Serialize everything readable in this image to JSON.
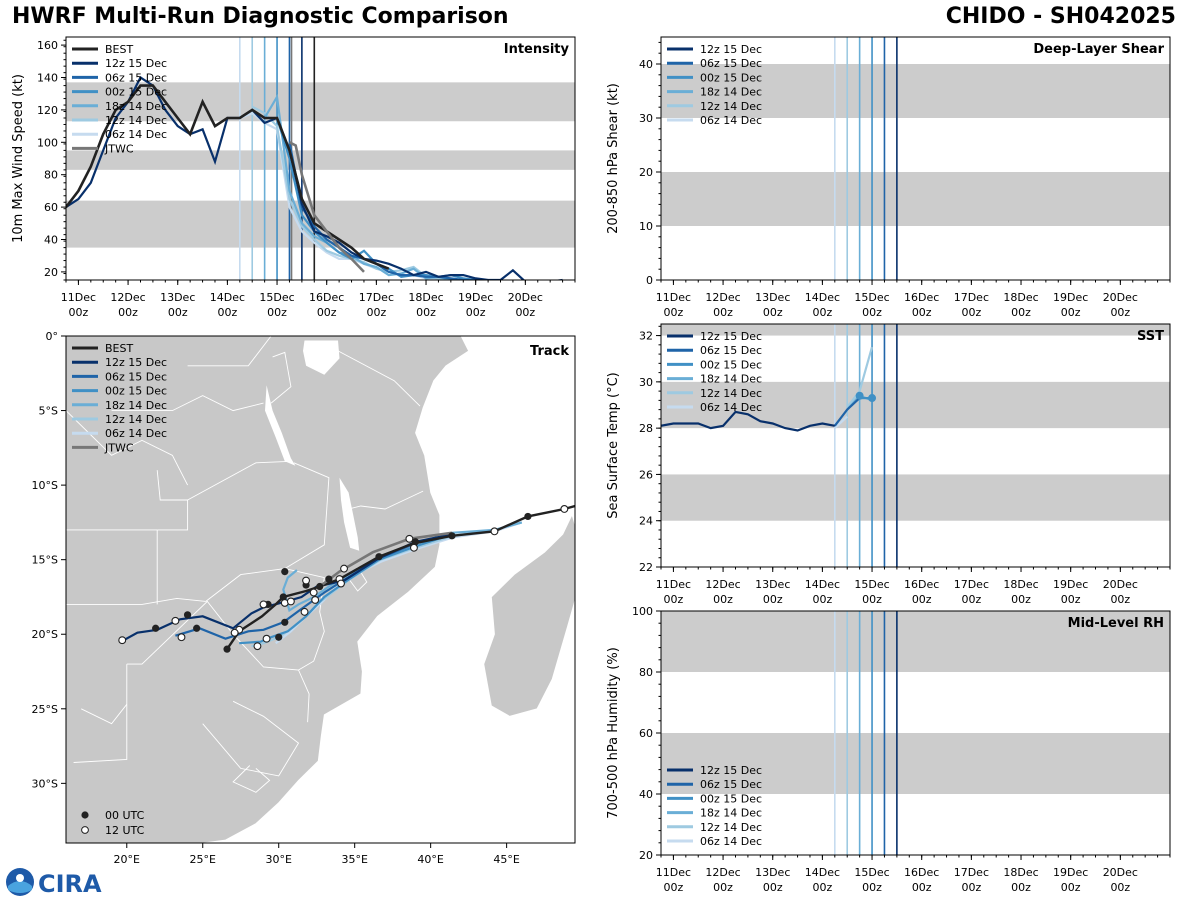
{
  "header": {
    "title": "HWRF Multi-Run Diagnostic Comparison",
    "storm": "CHIDO - SH042025"
  },
  "logo": {
    "text": "CIRA"
  },
  "colors": {
    "best": "#222222",
    "jtwc": "#777777",
    "band": "#cccccc",
    "land": "#c8c8c8",
    "runs": [
      "#08306b",
      "#1f64a8",
      "#4090c5",
      "#6aaed6",
      "#9ecae1",
      "#c6dbef"
    ]
  },
  "time_axis": {
    "ticks": [
      {
        "v": 0,
        "day": "11Dec",
        "hr": "00z"
      },
      {
        "v": 24,
        "day": "12Dec",
        "hr": "00z"
      },
      {
        "v": 48,
        "day": "13Dec",
        "hr": "00z"
      },
      {
        "v": 72,
        "day": "14Dec",
        "hr": "00z"
      },
      {
        "v": 96,
        "day": "15Dec",
        "hr": "00z"
      },
      {
        "v": 120,
        "day": "16Dec",
        "hr": "00z"
      },
      {
        "v": 144,
        "day": "17Dec",
        "hr": "00z"
      },
      {
        "v": 168,
        "day": "18Dec",
        "hr": "00z"
      },
      {
        "v": 192,
        "day": "19Dec",
        "hr": "00z"
      },
      {
        "v": 216,
        "day": "20Dec",
        "hr": "00z"
      }
    ],
    "range": [
      -6,
      240
    ]
  },
  "runs": [
    {
      "name": "12z 15 Dec",
      "init": 108
    },
    {
      "name": "06z 15 Dec",
      "init": 102
    },
    {
      "name": "00z 15 Dec",
      "init": 96
    },
    {
      "name": "18z 14 Dec",
      "init": 90
    },
    {
      "name": "12z 14 Dec",
      "init": 84
    },
    {
      "name": "06z 14 Dec",
      "init": 78
    }
  ],
  "chart_data": [
    {
      "id": "intensity",
      "type": "line",
      "title": "Intensity",
      "ylabel": "10m Max Wind Speed (kt)",
      "ylim": [
        15,
        165
      ],
      "yticks": [
        20,
        40,
        60,
        80,
        100,
        120,
        140,
        160
      ],
      "bands": [
        [
          35,
          64
        ],
        [
          83,
          95
        ],
        [
          113,
          137
        ]
      ],
      "legend": [
        "BEST",
        "12z 15 Dec",
        "06z 15 Dec",
        "00z 15 Dec",
        "18z 14 Dec",
        "12z 14 Dec",
        "06z 14 Dec",
        "JTWC"
      ],
      "best": {
        "x": [
          -6,
          0,
          6,
          12,
          18,
          24,
          30,
          36,
          42,
          48,
          54,
          60,
          66,
          72,
          78,
          84,
          90,
          96,
          102,
          108,
          114,
          120,
          126,
          132,
          138,
          144,
          150
        ],
        "y": [
          60,
          70,
          85,
          105,
          120,
          125,
          135,
          135,
          125,
          115,
          105,
          125,
          110,
          115,
          115,
          120,
          115,
          115,
          95,
          65,
          50,
          45,
          40,
          35,
          28,
          25,
          22
        ]
      },
      "jtwc": {
        "x": [
          102,
          105,
          108,
          114,
          120,
          126,
          132,
          138
        ],
        "y": [
          100,
          98,
          80,
          55,
          45,
          35,
          28,
          20
        ]
      },
      "series": [
        {
          "x": [
            -6,
            0,
            6,
            12,
            18,
            24,
            30,
            36,
            42,
            48,
            54,
            60,
            66,
            72,
            78,
            84,
            90,
            96,
            102,
            108,
            114,
            120,
            126,
            132,
            138,
            144,
            150,
            156,
            162,
            168,
            174,
            180,
            186,
            192,
            198,
            204,
            210,
            216,
            222,
            228,
            234
          ],
          "y": [
            60,
            65,
            75,
            95,
            115,
            125,
            140,
            135,
            120,
            110,
            105,
            108,
            88,
            115,
            115,
            120,
            112,
            115,
            95,
            62,
            45,
            42,
            38,
            32,
            28,
            27,
            25,
            22,
            18,
            20,
            17,
            18,
            18,
            16,
            15,
            15,
            21,
            14,
            13,
            14,
            15
          ]
        },
        {
          "x": [
            102,
            108,
            114,
            120,
            126,
            132,
            138,
            144,
            150,
            156,
            162,
            168,
            174,
            180,
            186,
            192,
            198
          ],
          "y": [
            100,
            60,
            48,
            40,
            35,
            30,
            28,
            25,
            20,
            18,
            18,
            17,
            17,
            16,
            15,
            15,
            14
          ]
        },
        {
          "x": [
            96,
            102,
            108,
            114,
            120,
            126,
            132,
            138,
            144,
            150,
            156,
            162,
            168,
            174,
            180,
            186,
            192
          ],
          "y": [
            115,
            90,
            55,
            45,
            38,
            32,
            28,
            33,
            25,
            22,
            17,
            18,
            18,
            17,
            18,
            16,
            15
          ]
        },
        {
          "x": [
            90,
            96,
            102,
            108,
            114,
            120,
            126,
            132,
            138,
            144,
            150,
            156,
            162,
            168,
            174,
            180,
            186
          ],
          "y": [
            115,
            128,
            70,
            50,
            42,
            38,
            32,
            30,
            25,
            23,
            18,
            19,
            22,
            16,
            17,
            15,
            14
          ]
        },
        {
          "x": [
            84,
            90,
            96,
            102,
            108,
            114,
            120,
            126,
            132,
            138,
            144,
            150,
            156,
            162,
            168,
            174,
            180
          ],
          "y": [
            122,
            118,
            110,
            65,
            48,
            40,
            33,
            30,
            28,
            26,
            22,
            20,
            21,
            23,
            17,
            16,
            14
          ]
        },
        {
          "x": [
            78,
            84,
            90,
            96,
            102,
            108,
            114,
            120,
            126,
            132,
            138,
            144,
            150,
            156,
            162,
            168,
            174
          ],
          "y": [
            115,
            118,
            112,
            108,
            60,
            45,
            38,
            32,
            28,
            28,
            25,
            22,
            20,
            18,
            18,
            16,
            15
          ]
        }
      ]
    },
    {
      "id": "shear",
      "type": "line",
      "title": "Deep-Layer Shear",
      "ylabel": "200-850 hPa Shear (kt)",
      "ylim": [
        0,
        45
      ],
      "yticks": [
        0,
        10,
        20,
        30,
        40
      ],
      "bands": [
        [
          10,
          20
        ],
        [
          30,
          40
        ]
      ],
      "legend": [
        "12z 15 Dec",
        "06z 15 Dec",
        "00z 15 Dec",
        "18z 14 Dec",
        "12z 14 Dec",
        "06z 14 Dec"
      ],
      "series": []
    },
    {
      "id": "sst",
      "type": "line",
      "title": "SST",
      "ylabel": "Sea Surface Temp (°C)",
      "ylim": [
        22,
        32.5
      ],
      "yticks": [
        22,
        24,
        26,
        28,
        30,
        32
      ],
      "bands": [
        [
          24,
          26
        ],
        [
          28,
          30
        ],
        [
          32,
          32.5
        ]
      ],
      "legend": [
        "12z 15 Dec",
        "06z 15 Dec",
        "00z 15 Dec",
        "18z 14 Dec",
        "12z 14 Dec",
        "06z 14 Dec"
      ],
      "series": [
        {
          "x": [
            -6,
            0,
            6,
            12,
            18,
            24,
            30,
            36,
            42,
            48,
            54,
            60,
            66,
            72,
            78
          ],
          "y": [
            28.1,
            28.2,
            28.2,
            28.2,
            28.0,
            28.1,
            28.7,
            28.6,
            28.3,
            28.2,
            28.0,
            27.9,
            28.1,
            28.2,
            28.1
          ]
        },
        {
          "x": [
            78,
            84,
            90
          ],
          "y": [
            28.1,
            28.8,
            29.3
          ]
        },
        {
          "x": [
            90,
            96
          ],
          "y": [
            29.3,
            29.3
          ]
        },
        {
          "x": [
            84,
            90,
            96
          ],
          "y": [
            28.8,
            29.4,
            29.2
          ]
        },
        {
          "x": [
            84,
            90,
            96
          ],
          "y": [
            28.9,
            29.6,
            31.5
          ]
        },
        {
          "x": [
            78,
            84
          ],
          "y": [
            28.0,
            28.5
          ]
        }
      ]
    },
    {
      "id": "rh",
      "type": "line",
      "title": "Mid-Level RH",
      "ylabel": "700-500 hPa Humidity (%)",
      "ylim": [
        20,
        100
      ],
      "yticks": [
        20,
        40,
        60,
        80,
        100
      ],
      "bands": [
        [
          40,
          60
        ],
        [
          80,
          100
        ]
      ],
      "legend": [
        "12z 15 Dec",
        "06z 15 Dec",
        "00z 15 Dec",
        "18z 14 Dec",
        "12z 14 Dec",
        "06z 14 Dec"
      ],
      "series": []
    },
    {
      "id": "track",
      "type": "scatter",
      "title": "Track",
      "xlim": [
        16,
        49.5
      ],
      "ylim": [
        -34,
        0
      ],
      "xticks": [
        {
          "v": 20,
          "label": "20°E"
        },
        {
          "v": 25,
          "label": "25°E"
        },
        {
          "v": 30,
          "label": "30°E"
        },
        {
          "v": 35,
          "label": "35°E"
        },
        {
          "v": 40,
          "label": "40°E"
        },
        {
          "v": 45,
          "label": "45°E"
        }
      ],
      "yticks": [
        {
          "v": 0,
          "label": "0°"
        },
        {
          "v": -5,
          "label": "5°S"
        },
        {
          "v": -10,
          "label": "10°S"
        },
        {
          "v": -15,
          "label": "15°S"
        },
        {
          "v": -20,
          "label": "20°S"
        },
        {
          "v": -25,
          "label": "25°S"
        },
        {
          "v": -30,
          "label": "30°S"
        }
      ],
      "legend": [
        "BEST",
        "12z 15 Dec",
        "06z 15 Dec",
        "00z 15 Dec",
        "18z 14 Dec",
        "12z 14 Dec",
        "06z 14 Dec",
        "JTWC"
      ],
      "marker_legend": [
        "00 UTC",
        "12 UTC"
      ],
      "best": {
        "lon": [
          49.5,
          48.8,
          46.4,
          44.2,
          41.4,
          38.9,
          36.6,
          34.0,
          32.7,
          31.8,
          30.3,
          29.8,
          28.9,
          27.4,
          26.6
        ],
        "lat": [
          -11.4,
          -11.6,
          -12.1,
          -13.1,
          -13.4,
          -13.9,
          -14.8,
          -16.3,
          -16.8,
          -17.1,
          -17.5,
          -18.0,
          -18.8,
          -19.8,
          -21.0
        ]
      },
      "jtwc": {
        "lon": [
          41.4,
          38.6,
          36.2,
          34.0,
          32.7
        ],
        "lat": [
          -13.2,
          -13.6,
          -14.5,
          -15.8,
          -16.8
        ]
      },
      "series": [
        {
          "lon": [
            41.4,
            39.0,
            36.6,
            34.3,
            32.5,
            31.5,
            30.5,
            29.0,
            28.2,
            27.0,
            25.0,
            23.5,
            22.0,
            20.7,
            19.8
          ],
          "lat": [
            -13.3,
            -13.8,
            -14.9,
            -16.4,
            -16.8,
            -17.5,
            -17.8,
            -18.2,
            -18.6,
            -19.6,
            -18.8,
            -19.0,
            -19.7,
            -19.9,
            -20.4
          ]
        },
        {
          "lon": [
            41.4,
            39.0,
            36.6,
            34.4,
            33.0,
            31.5,
            30.3,
            29.0,
            28.0,
            26.5,
            24.8,
            23.2
          ],
          "lat": [
            -13.3,
            -13.9,
            -14.9,
            -16.3,
            -17.2,
            -18.3,
            -19.2,
            -19.7,
            -19.8,
            -20.3,
            -19.6,
            -20.1
          ]
        },
        {
          "lon": [
            41.4,
            39.0,
            36.6,
            34.5,
            33.0,
            31.8,
            30.6,
            29.5,
            28.8,
            27.4
          ],
          "lat": [
            -13.3,
            -14.1,
            -15.0,
            -16.4,
            -17.5,
            -18.8,
            -19.8,
            -20.2,
            -20.5,
            -20.6
          ]
        },
        {
          "lon": [
            46.0,
            44.2,
            41.4,
            39.0,
            36.6,
            34.6,
            33.3,
            32.3,
            31.3,
            30.7,
            30.3,
            30.6,
            31.2
          ],
          "lat": [
            -12.5,
            -13.0,
            -13.2,
            -13.9,
            -14.8,
            -16.0,
            -16.8,
            -17.5,
            -18.0,
            -18.4,
            -17.0,
            -16.2,
            -15.7
          ]
        },
        {
          "lon": [
            46.0,
            44.2,
            41.5,
            39.0,
            36.7,
            34.7,
            33.4,
            32.5,
            31.8,
            31.0,
            30.0,
            29.0,
            28.2
          ],
          "lat": [
            -12.5,
            -13.0,
            -13.4,
            -14.2,
            -15.0,
            -16.3,
            -17.3,
            -18.0,
            -18.8,
            -19.5,
            -20.2,
            -20.6,
            -20.8
          ]
        },
        {
          "lon": [
            46.0,
            44.2,
            41.5,
            39.0,
            36.8,
            35.0,
            33.8,
            32.8,
            31.7,
            30.8,
            29.8
          ],
          "lat": [
            -12.5,
            -13.1,
            -13.5,
            -14.3,
            -15.1,
            -16.0,
            -16.8,
            -17.9,
            -18.9,
            -19.8,
            -20.6
          ]
        }
      ],
      "points_00utc": [
        {
          "lon": 46.4,
          "lat": -12.1
        },
        {
          "lon": 41.4,
          "lat": -13.4
        },
        {
          "lon": 36.6,
          "lat": -14.8
        },
        {
          "lon": 32.7,
          "lat": -16.8
        },
        {
          "lon": 30.3,
          "lat": -17.5
        },
        {
          "lon": 29.3,
          "lat": -18.0
        },
        {
          "lon": 26.6,
          "lat": -21.0
        },
        {
          "lon": 30.4,
          "lat": -15.8
        },
        {
          "lon": 30.4,
          "lat": -19.2
        },
        {
          "lon": 30.0,
          "lat": -20.2
        },
        {
          "lon": 24.0,
          "lat": -18.7
        },
        {
          "lon": 21.9,
          "lat": -19.6
        },
        {
          "lon": 24.6,
          "lat": -19.6
        },
        {
          "lon": 39.0,
          "lat": -13.8
        },
        {
          "lon": 33.3,
          "lat": -16.3
        },
        {
          "lon": 31.8,
          "lat": -16.7
        }
      ],
      "points_12utc": [
        {
          "lon": 48.8,
          "lat": -11.6
        },
        {
          "lon": 44.2,
          "lat": -13.1
        },
        {
          "lon": 38.6,
          "lat": -13.6
        },
        {
          "lon": 34.0,
          "lat": -16.3
        },
        {
          "lon": 31.8,
          "lat": -16.4
        },
        {
          "lon": 30.4,
          "lat": -17.9
        },
        {
          "lon": 29.0,
          "lat": -18.0
        },
        {
          "lon": 27.4,
          "lat": -19.7
        },
        {
          "lon": 27.1,
          "lat": -19.9
        },
        {
          "lon": 29.2,
          "lat": -20.3
        },
        {
          "lon": 28.6,
          "lat": -20.8
        },
        {
          "lon": 23.2,
          "lat": -19.1
        },
        {
          "lon": 23.6,
          "lat": -20.2
        },
        {
          "lon": 19.7,
          "lat": -20.4
        },
        {
          "lon": 32.4,
          "lat": -17.7
        },
        {
          "lon": 31.7,
          "lat": -18.5
        },
        {
          "lon": 34.3,
          "lat": -15.6
        },
        {
          "lon": 34.1,
          "lat": -16.6
        },
        {
          "lon": 30.8,
          "lat": -17.8
        },
        {
          "lon": 38.9,
          "lat": -14.2
        },
        {
          "lon": 32.3,
          "lat": -17.2
        }
      ]
    }
  ]
}
